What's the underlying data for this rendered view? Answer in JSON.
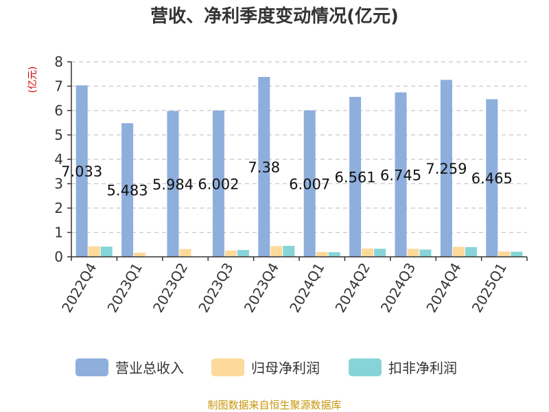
{
  "chart_data": {
    "type": "bar",
    "title": "营收、净利季度变动情况(亿元)",
    "unit_label": "(亿元)",
    "categories": [
      "2022Q4",
      "2023Q1",
      "2023Q2",
      "2023Q3",
      "2023Q4",
      "2024Q1",
      "2024Q2",
      "2024Q3",
      "2024Q4",
      "2025Q1"
    ],
    "series": [
      {
        "name": "营业总收入",
        "color": "#8eaedc",
        "values": [
          7.033,
          5.483,
          5.984,
          6.002,
          7.38,
          6.007,
          6.561,
          6.745,
          7.259,
          6.465
        ],
        "labels": [
          "7.033",
          "5.483",
          "5.984",
          "6.002",
          "7.38",
          "6.007",
          "6.561",
          "6.745",
          "7.259",
          "6.465"
        ]
      },
      {
        "name": "归母净利润",
        "color": "#fdd99a",
        "values": [
          0.43,
          0.17,
          0.32,
          0.26,
          0.44,
          0.2,
          0.34,
          0.33,
          0.41,
          0.22
        ]
      },
      {
        "name": "扣非净利润",
        "color": "#86d4d8",
        "values": [
          0.42,
          0.0,
          0.0,
          0.28,
          0.45,
          0.19,
          0.33,
          0.3,
          0.4,
          0.21
        ]
      }
    ],
    "ylim": [
      0,
      8
    ],
    "yticks": [
      "0",
      "1",
      "2",
      "3",
      "4",
      "5",
      "6",
      "7",
      "8"
    ],
    "grid": true,
    "legend_position": "bottom"
  },
  "source_text": "制图数据来自恒生聚源数据库"
}
